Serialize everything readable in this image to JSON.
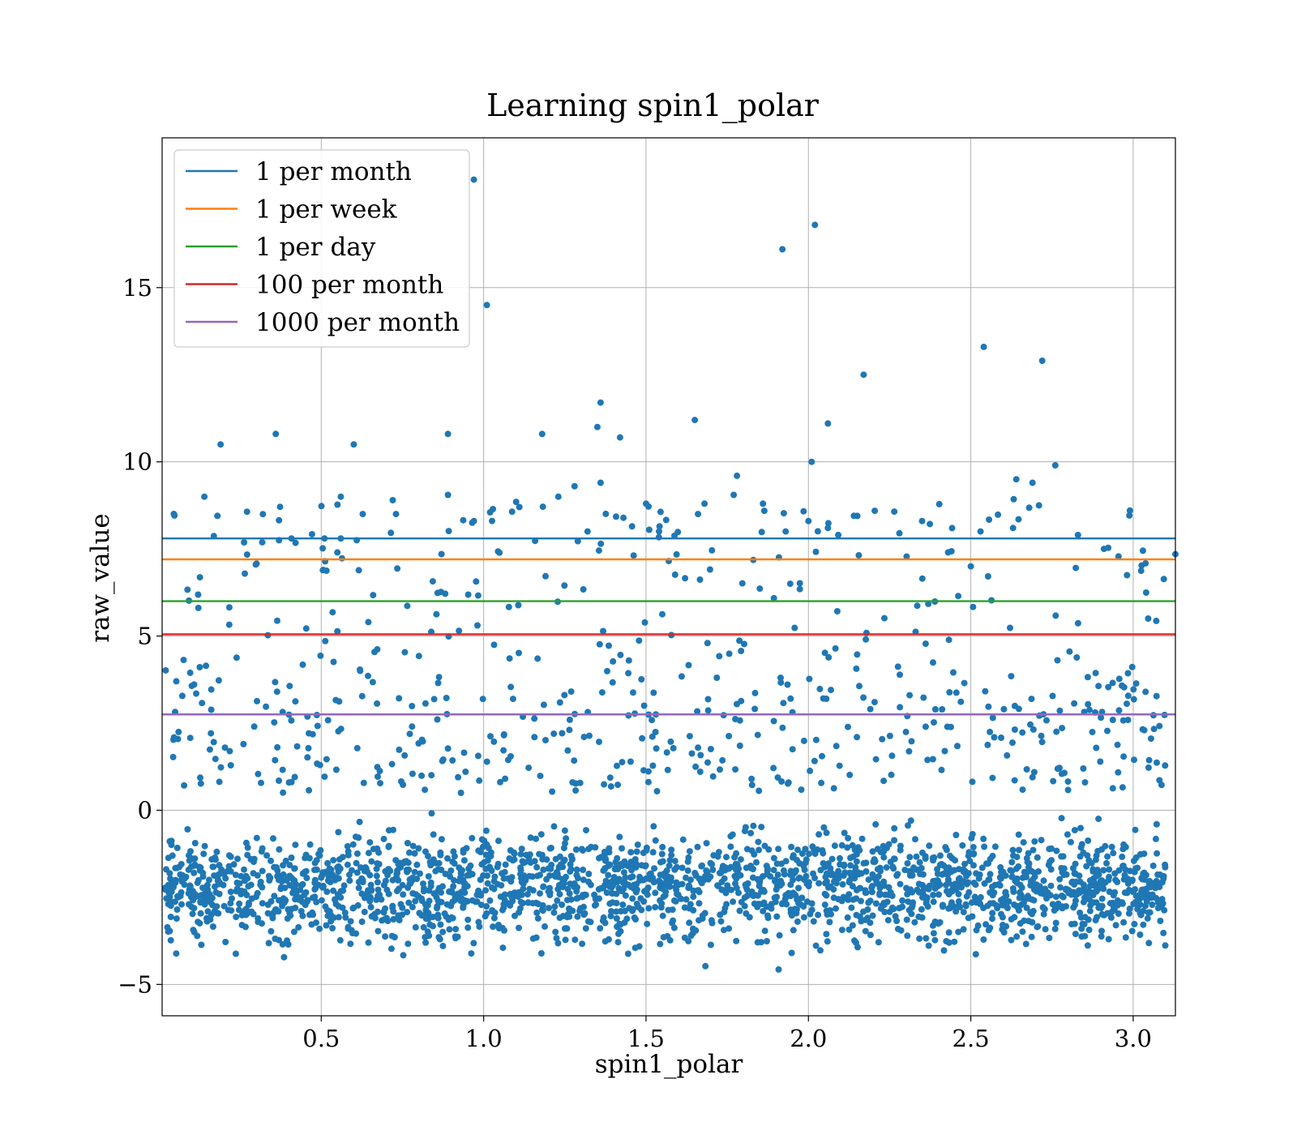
{
  "chart_data": {
    "type": "scatter",
    "title": "Learning spin1_polar",
    "xlabel": "spin1_polar",
    "ylabel": "raw_value",
    "xlim": [
      0.01,
      3.13
    ],
    "ylim": [
      -5.9,
      19.3
    ],
    "x_ticks": [
      0.5,
      1.0,
      1.5,
      2.0,
      2.5,
      3.0
    ],
    "x_tick_labels": [
      "0.5",
      "1.0",
      "1.5",
      "2.0",
      "2.5",
      "3.0"
    ],
    "y_ticks": [
      -5,
      0,
      5,
      10,
      15
    ],
    "y_tick_labels": [
      "−5",
      "0",
      "5",
      "10",
      "15"
    ],
    "grid": true,
    "legend_position": "top-left",
    "marker_color": "#1f77b4",
    "thresholds": [
      {
        "name": "1 per month",
        "y": 7.8,
        "color": "#1f77b4"
      },
      {
        "name": "1 per week",
        "y": 7.2,
        "color": "#ff7f0e"
      },
      {
        "name": "1 per day",
        "y": 6.0,
        "color": "#2ca02c"
      },
      {
        "name": "100 per month",
        "y": 5.05,
        "color": "#d62728"
      },
      {
        "name": "1000 per month",
        "y": 2.75,
        "color": "#9467bd"
      }
    ],
    "highlighted_points": [
      [
        0.97,
        18.1
      ],
      [
        2.02,
        16.8
      ],
      [
        1.92,
        16.1
      ],
      [
        1.01,
        14.5
      ],
      [
        2.54,
        13.3
      ],
      [
        2.72,
        12.9
      ],
      [
        2.17,
        12.5
      ],
      [
        1.36,
        11.7
      ],
      [
        1.65,
        11.2
      ],
      [
        2.06,
        11.1
      ],
      [
        1.35,
        11.0
      ],
      [
        0.36,
        10.8
      ],
      [
        0.89,
        10.8
      ],
      [
        1.18,
        10.8
      ],
      [
        1.42,
        10.7
      ],
      [
        0.19,
        10.5
      ],
      [
        0.6,
        10.5
      ],
      [
        2.01,
        10.0
      ],
      [
        2.76,
        9.9
      ],
      [
        1.78,
        9.6
      ],
      [
        2.64,
        9.5
      ],
      [
        2.69,
        9.4
      ],
      [
        1.36,
        9.4
      ],
      [
        1.28,
        9.3
      ],
      [
        0.14,
        9.0
      ],
      [
        0.89,
        9.05
      ],
      [
        0.56,
        9.0
      ],
      [
        1.77,
        9.05
      ],
      [
        1.23,
        9.0
      ],
      [
        0.72,
        8.9
      ],
      [
        1.1,
        8.85
      ],
      [
        1.11,
        8.7
      ],
      [
        1.68,
        8.8
      ],
      [
        1.5,
        8.8
      ],
      [
        1.86,
        8.8
      ],
      [
        2.71,
        8.75
      ],
      [
        2.99,
        8.6
      ],
      [
        1.02,
        8.55
      ],
      [
        0.73,
        8.5
      ],
      [
        1.66,
        8.5
      ],
      [
        2.14,
        8.45
      ],
      [
        0.97,
        8.3
      ],
      [
        2.0,
        8.3
      ],
      [
        2.35,
        8.3
      ],
      [
        0.37,
        7.75
      ],
      [
        0.51,
        7.8
      ],
      [
        0.56,
        7.8
      ],
      [
        1.32,
        8.0
      ],
      [
        1.93,
        8.0
      ],
      [
        1.54,
        8.0
      ],
      [
        2.63,
        8.1
      ],
      [
        2.53,
        8.0
      ],
      [
        2.06,
        8.1
      ],
      [
        2.28,
        7.95
      ],
      [
        2.83,
        7.9
      ],
      [
        2.91,
        7.5
      ],
      [
        3.03,
        7.45
      ],
      [
        3.13,
        7.35
      ],
      [
        2.5,
        7.0
      ],
      [
        2.43,
        7.4
      ]
    ],
    "bulk": {
      "count": 2200,
      "x_range": [
        0.02,
        3.1
      ],
      "core_y": [
        -4.8,
        0.5
      ],
      "center_y": -2.2
    }
  }
}
